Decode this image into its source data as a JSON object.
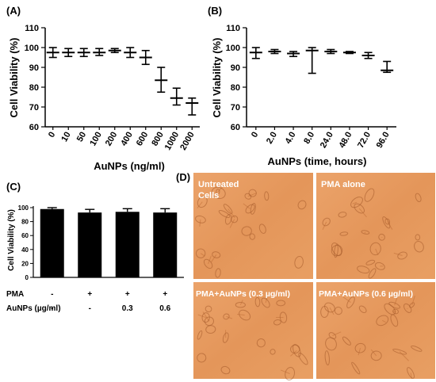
{
  "panels": {
    "A": {
      "letter": "(A)"
    },
    "B": {
      "letter": "(B)"
    },
    "C": {
      "letter": "(C)"
    },
    "D": {
      "letter": "(D)"
    }
  },
  "chart_data": [
    {
      "id": "A",
      "type": "scatter",
      "ylabel": "Cell Viability (%)",
      "xlabel": "AuNPs (ng/ml)",
      "ylim": [
        60,
        110
      ],
      "yticks": [
        "60",
        "70",
        "80",
        "90",
        "100",
        "110"
      ],
      "categories": [
        "0",
        "10",
        "50",
        "100",
        "200",
        "400",
        "600",
        "800",
        "1000",
        "2000"
      ],
      "values": [
        97.5,
        97.5,
        97.5,
        97.5,
        98.5,
        97.5,
        95,
        83.5,
        74.5,
        72
      ],
      "err_low": [
        95,
        95.5,
        95.5,
        96,
        97.5,
        95,
        91.5,
        77.5,
        71,
        66
      ],
      "err_high": [
        100,
        99.5,
        99.5,
        99.5,
        99.5,
        100,
        98.5,
        90,
        79.5,
        74.5
      ]
    },
    {
      "id": "B",
      "type": "scatter",
      "ylabel": "Cell Viability (%)",
      "xlabel": "AuNPs (time, hours)",
      "ylim": [
        60,
        110
      ],
      "yticks": [
        "60",
        "70",
        "80",
        "90",
        "100",
        "110"
      ],
      "categories": [
        "0",
        "2.0",
        "4.0",
        "8.0",
        "24.0",
        "48.0",
        "72.0",
        "96.0"
      ],
      "values": [
        97.5,
        98,
        97,
        98.5,
        98,
        97.5,
        96,
        88.5
      ],
      "err_low": [
        94.5,
        97,
        95.5,
        87,
        97,
        97,
        94.5,
        87.5
      ],
      "err_high": [
        100,
        99,
        98,
        100,
        99,
        98,
        97.5,
        93
      ]
    },
    {
      "id": "C",
      "type": "bar",
      "ylabel": "Cell Viability (%)",
      "ylim": [
        0,
        100
      ],
      "yticks": [
        "0",
        "20",
        "40",
        "60",
        "80",
        "100"
      ],
      "values": [
        98,
        93,
        94,
        93
      ],
      "err_high": [
        100,
        97.5,
        98.5,
        98.5
      ],
      "row_labels": [
        "PMA",
        "AuNPs (µg/ml)"
      ],
      "pma": [
        "-",
        "+",
        "+",
        "+"
      ],
      "aunps": [
        "-",
        "-",
        "0.3",
        "0.6"
      ]
    }
  ],
  "micrographs": {
    "untreated_line1": "Untreated",
    "untreated_line2": "Cells",
    "pma_alone": "PMA alone",
    "pma_aunps_03": "PMA+AuNPs (0.3 µg/ml)",
    "pma_aunps_06": "PMA+AuNPs (0.6 µg/ml)",
    "image_color": "#e79c5e"
  }
}
